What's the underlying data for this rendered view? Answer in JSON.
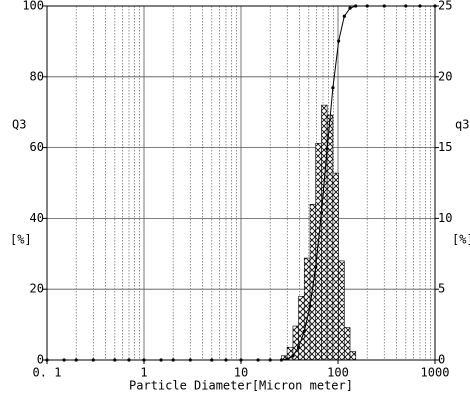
{
  "chart_data": {
    "type": "histogram",
    "x_label": "Particle Diameter[Micron meter]",
    "y_label": "Q3",
    "y_unit": "[%]",
    "y2_label": "q3",
    "y2_unit": "[%]",
    "log_x": true,
    "grid": true,
    "xlim": [
      0.1,
      1000
    ],
    "xticks": [
      {
        "value": 0.1,
        "label": "0. 1"
      },
      1,
      10,
      100,
      1000
    ],
    "ylim": [
      0,
      100
    ],
    "yticks": [
      0,
      20,
      40,
      60,
      80,
      100
    ],
    "y2lim": [
      0,
      25
    ],
    "y2ticks": [
      0,
      5,
      10,
      15,
      20,
      25
    ],
    "series": [
      {
        "type": "histogram",
        "axis": "y2",
        "color": "#000000",
        "bins": [
          26.1,
          29.9,
          34.3,
          39.2,
          44.9,
          51.5,
          58.9,
          67.5,
          77.3,
          88.6,
          101.5,
          116.2,
          133.1,
          152.5
        ],
        "values": [
          0.3,
          0.9,
          2.4,
          4.5,
          7.2,
          11.0,
          15.3,
          18.0,
          17.3,
          13.2,
          7.0,
          2.3,
          0.6
        ]
      },
      {
        "type": "line",
        "axis": "y",
        "color": "#000000",
        "x": [
          0.1,
          0.15,
          0.2,
          0.3,
          0.5,
          0.7,
          1,
          1.5,
          2,
          3,
          5,
          7,
          10,
          15,
          20,
          26.1,
          29.9,
          34.3,
          39.2,
          44.9,
          51.5,
          58.9,
          67.5,
          77.3,
          88.6,
          101.5,
          116.2,
          133.1,
          152.5,
          200,
          300,
          500,
          700,
          1000
        ],
        "values": [
          0,
          0,
          0,
          0,
          0,
          0,
          0,
          0,
          0,
          0,
          0,
          0,
          0,
          0,
          0,
          0,
          0.3,
          1.2,
          3.6,
          8.1,
          15.3,
          26.3,
          41.6,
          59.6,
          76.9,
          90.1,
          97.1,
          99.4,
          100,
          100,
          100,
          100,
          100,
          100
        ]
      }
    ]
  }
}
